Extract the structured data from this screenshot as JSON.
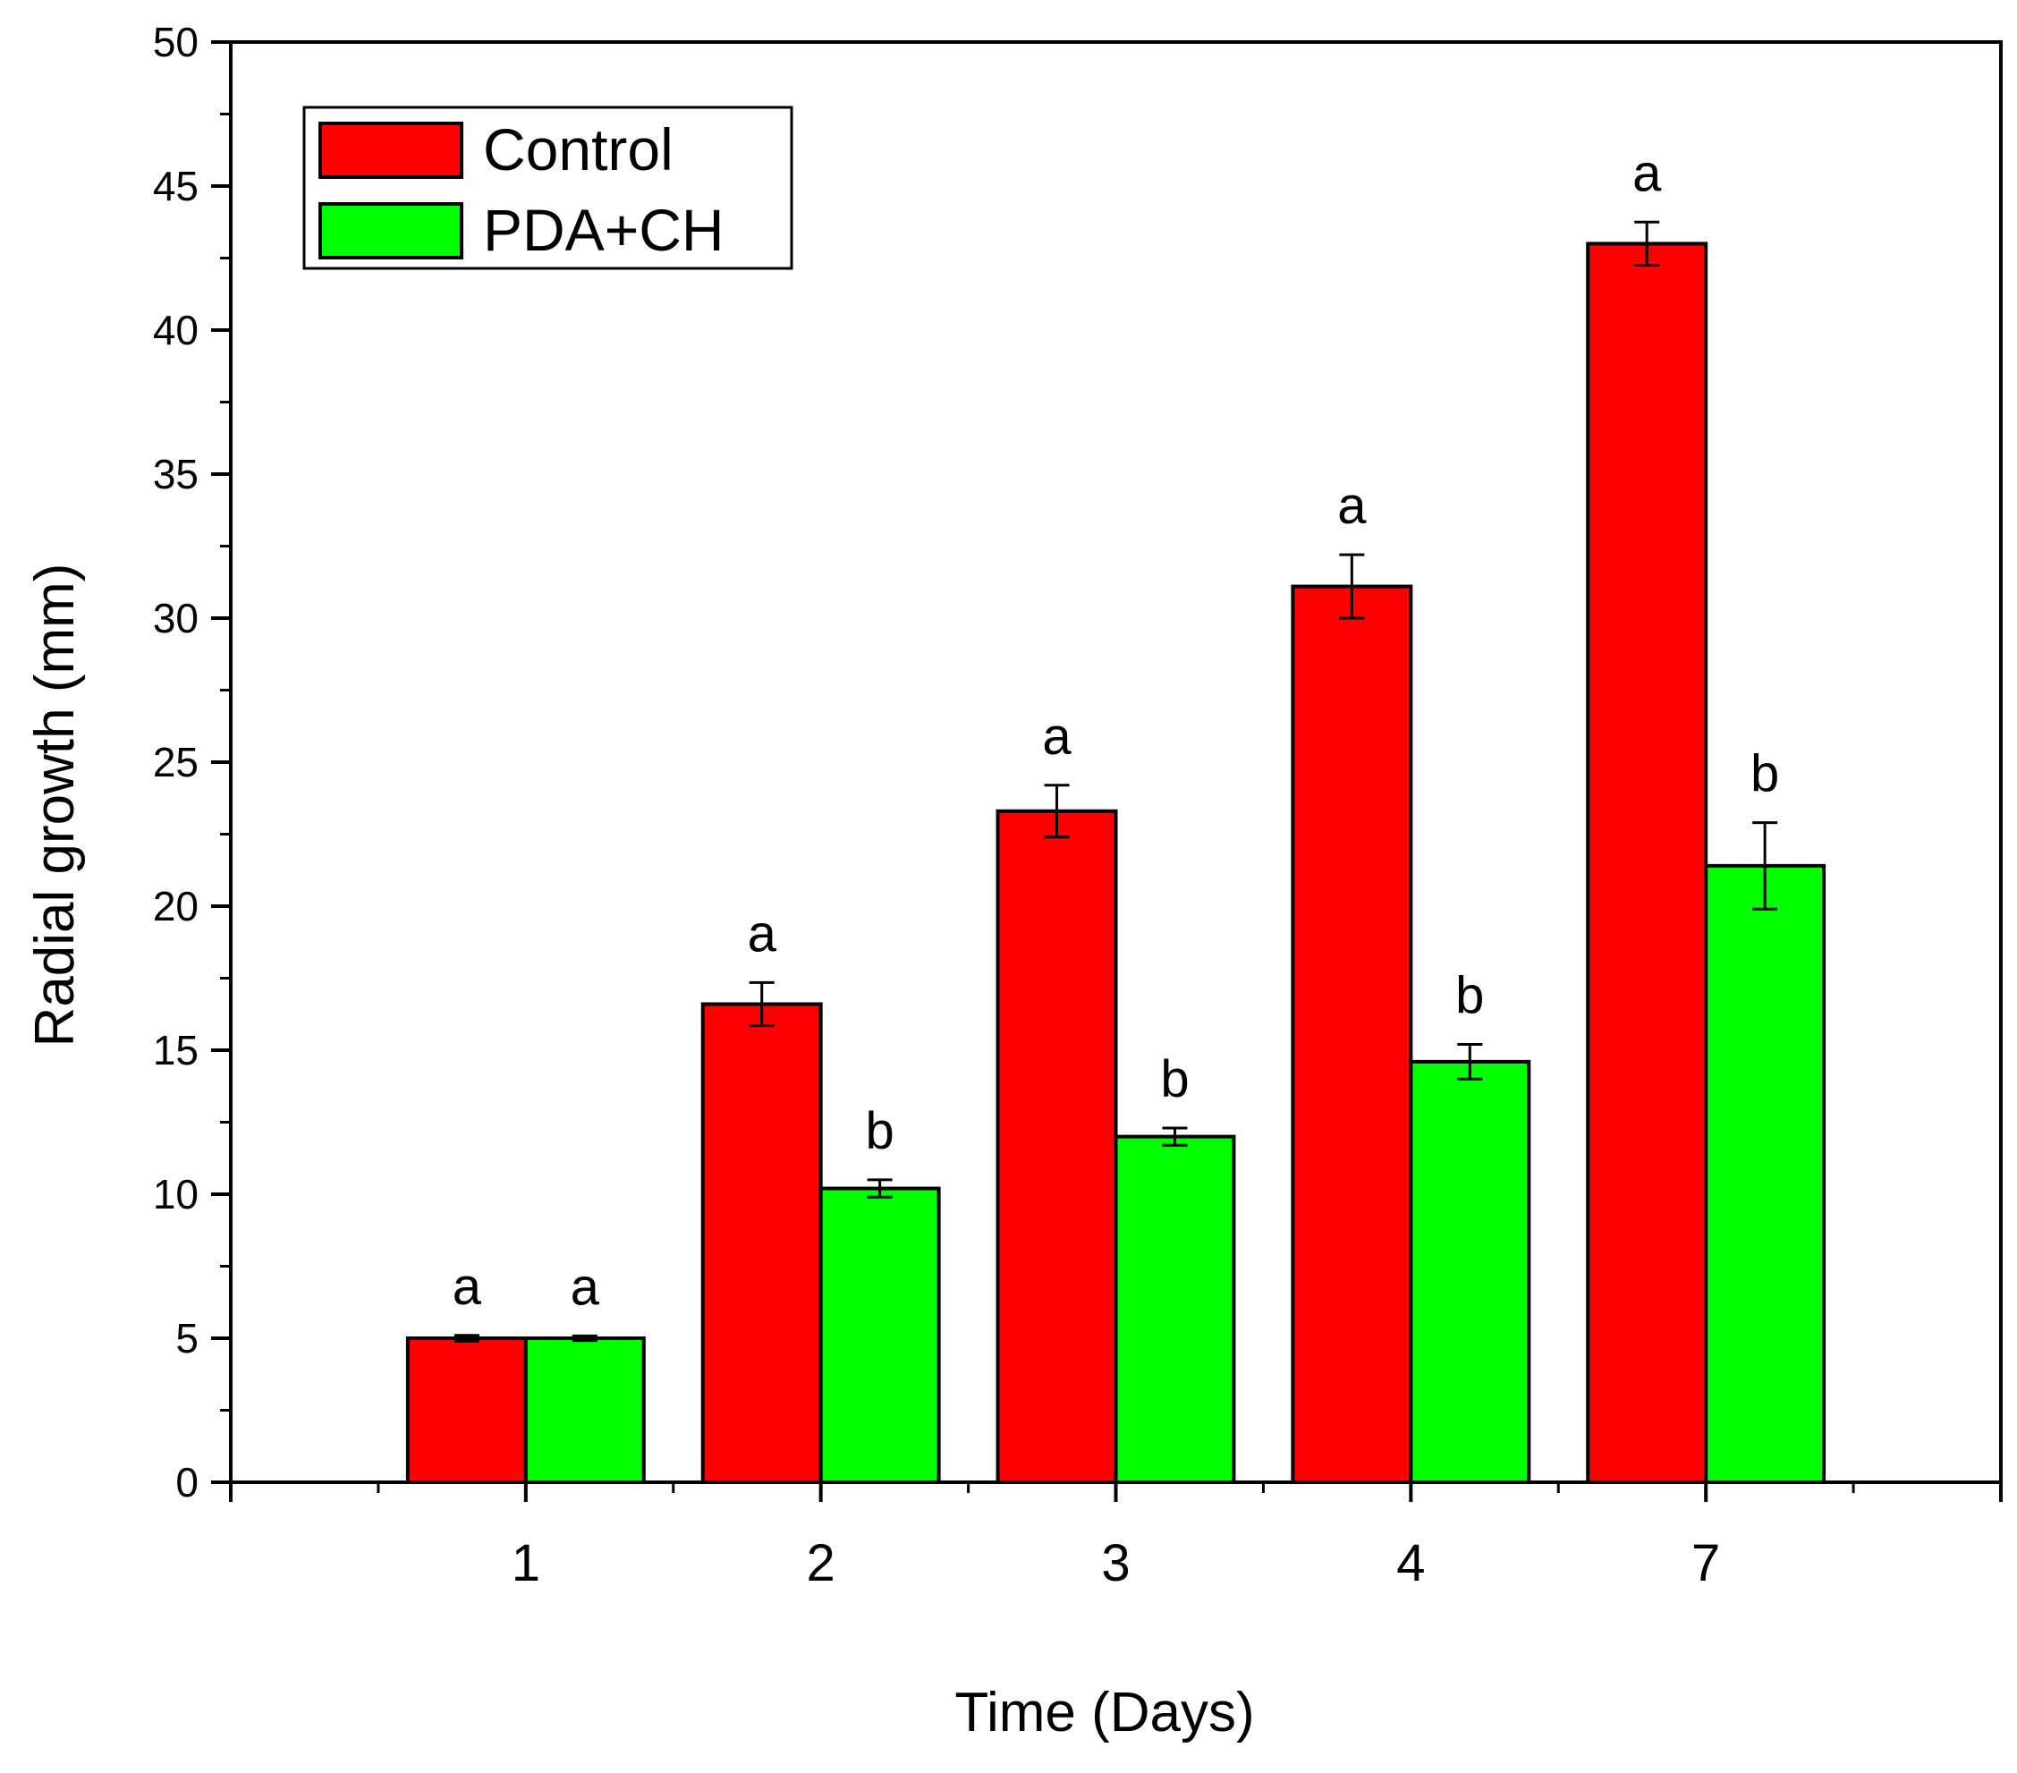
{
  "chart_data": {
    "type": "bar",
    "title": "",
    "xlabel": "Time (Days)",
    "ylabel": "Radial growth (mm)",
    "categories": [
      "1",
      "2",
      "3",
      "4",
      "7"
    ],
    "ylim": [
      0,
      50
    ],
    "yticks": [
      "0",
      "5",
      "10",
      "15",
      "20",
      "25",
      "30",
      "35",
      "40",
      "45",
      "50"
    ],
    "legend_position": "top-left",
    "series": [
      {
        "name": "Control",
        "color": "#ff0000",
        "values": [
          5.0,
          16.6,
          23.3,
          31.1,
          43.0
        ],
        "errors": [
          0.1,
          0.75,
          0.9,
          1.1,
          0.75
        ],
        "letters": [
          "a",
          "a",
          "a",
          "a",
          "a"
        ]
      },
      {
        "name": "PDA+CH",
        "color": "#00ff00",
        "values": [
          5.0,
          10.2,
          12.0,
          14.6,
          21.4
        ],
        "errors": [
          0.08,
          0.3,
          0.3,
          0.6,
          1.5
        ],
        "letters": [
          "a",
          "b",
          "b",
          "b",
          "b"
        ]
      }
    ]
  }
}
